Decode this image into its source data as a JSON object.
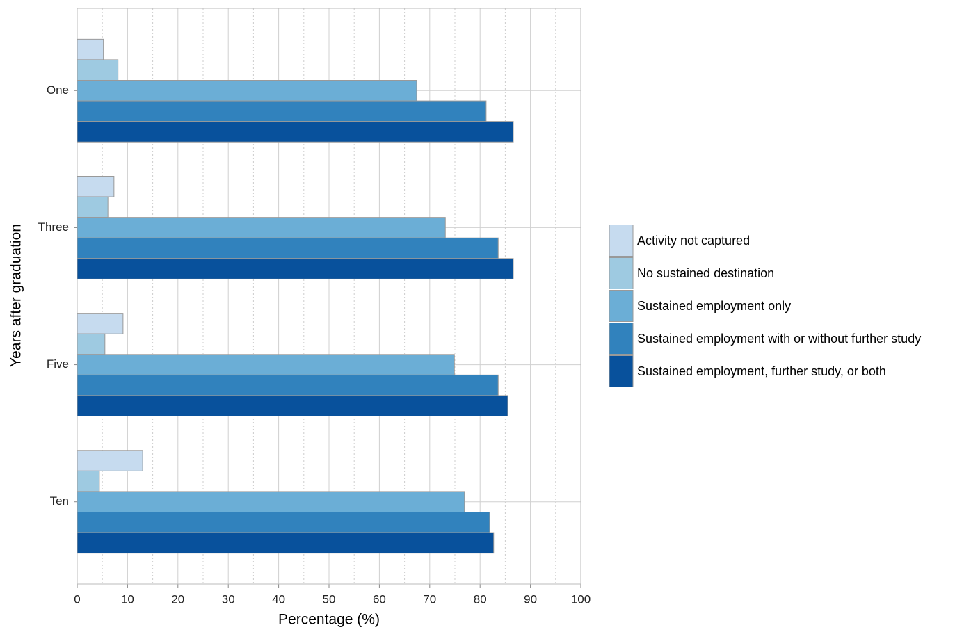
{
  "chart_data": {
    "type": "bar",
    "orientation": "horizontal",
    "x_label": "Percentage (%)",
    "y_label": "Years after graduation",
    "categories": [
      "One",
      "Three",
      "Five",
      "Ten"
    ],
    "series": [
      {
        "name": "Activity not captured",
        "color": "#c6dbef",
        "values": [
          5.2,
          7.3,
          9.1,
          13.0
        ]
      },
      {
        "name": "No sustained destination",
        "color": "#9ecae1",
        "values": [
          8.1,
          6.1,
          5.5,
          4.4
        ]
      },
      {
        "name": "Sustained employment only",
        "color": "#6baed6",
        "values": [
          67.4,
          73.1,
          74.9,
          76.9
        ]
      },
      {
        "name": "Sustained employment with or without further study",
        "color": "#3182bd",
        "values": [
          81.2,
          83.6,
          83.6,
          81.9
        ]
      },
      {
        "name": "Sustained employment, further study, or both",
        "color": "#08519c",
        "values": [
          86.6,
          86.6,
          85.5,
          82.7
        ]
      }
    ],
    "xlim": [
      0,
      100
    ],
    "xticks": [
      0,
      10,
      20,
      30,
      40,
      50,
      60,
      70,
      80,
      90,
      100
    ],
    "xminor": [
      5,
      15,
      25,
      35,
      45,
      55,
      65,
      75,
      85,
      95
    ],
    "grid": true,
    "legend": "right"
  }
}
